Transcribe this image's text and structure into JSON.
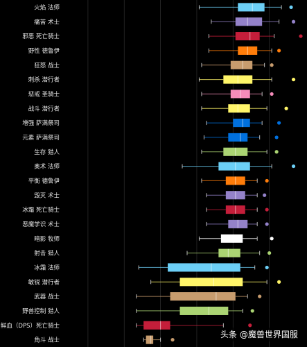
{
  "chart_data": {
    "type": "boxplot",
    "orientation": "horizontal",
    "title": "",
    "xlabel": "",
    "ylabel": "",
    "xlim": [
      0,
      100
    ],
    "grid": "vertical",
    "categories": [
      "火焰 法师",
      "痛苦 术士",
      "邪恶 死亡骑士",
      "野性 德鲁伊",
      "狂怒 战士",
      "刺杀 潜行者",
      "惩戒 圣骑士",
      "战斗 潜行者",
      "增强 萨满祭司",
      "元素 萨满祭司",
      "生存 猎人",
      "奥术 法师",
      "平衡 德鲁伊",
      "毁灭 术士",
      "冰霜 死亡骑士",
      "恶魔学识 术士",
      "暗影 牧师",
      "射击 猎人",
      "冰霜 法师",
      "敏锐 潜行者",
      "武器 战士",
      "野兽控制 猎人",
      "鲜血（DPS）死亡骑士",
      "角斗 战士"
    ],
    "series": [
      {
        "color": "#6ccff6",
        "whisker_low": 56,
        "q1": 72,
        "median": 78,
        "q3": 83,
        "whisker_high": 90,
        "outlier": 94
      },
      {
        "color": "#9482c9",
        "whisker_low": 61,
        "q1": 71,
        "median": 76,
        "q3": 82,
        "whisker_high": 89,
        "outlier": 95
      },
      {
        "color": "#c41e3a",
        "whisker_low": 60,
        "q1": 71,
        "median": 77,
        "q3": 81,
        "whisker_high": 87,
        "outlier": 98
      },
      {
        "color": "#ff7d0a",
        "whisker_low": 60,
        "q1": 72,
        "median": 76,
        "q3": 80,
        "whisker_high": 86,
        "outlier": 89
      },
      {
        "color": "#c79c6e",
        "whisker_low": 57,
        "q1": 69,
        "median": 74,
        "q3": 78,
        "whisker_high": 83,
        "outlier": 86
      },
      {
        "color": "#fff569",
        "whisker_low": 56,
        "q1": 66,
        "median": 72,
        "q3": 78,
        "whisker_high": 86,
        "outlier": 95
      },
      {
        "color": "#f58cba",
        "whisker_low": 57,
        "q1": 69,
        "median": 73,
        "q3": 77,
        "whisker_high": 82,
        "outlier": 86
      },
      {
        "color": "#fff569",
        "whisker_low": 57,
        "q1": 68,
        "median": 72,
        "q3": 77,
        "whisker_high": 84,
        "outlier": 92
      },
      {
        "color": "#0070de",
        "whisker_low": 59,
        "q1": 70,
        "median": 74,
        "q3": 77,
        "whisker_high": 82,
        "outlier": 89
      },
      {
        "color": "#0070de",
        "whisker_low": 58,
        "q1": 68,
        "median": 73,
        "q3": 76,
        "whisker_high": 81,
        "outlier": 88
      },
      {
        "color": "#abd473",
        "whisker_low": 57,
        "q1": 66,
        "median": 71,
        "q3": 76,
        "whisker_high": 84,
        "outlier": 88
      },
      {
        "color": "#6ccff6",
        "whisker_low": 49,
        "q1": 64,
        "median": 71,
        "q3": 77,
        "whisker_high": 86,
        "outlier": 95
      },
      {
        "color": "#ff7d0a",
        "whisker_low": 57,
        "q1": 67,
        "median": 71,
        "q3": 75,
        "whisker_high": 80,
        "outlier": 84
      },
      {
        "color": "#9482c9",
        "whisker_low": 59,
        "q1": 67,
        "median": 71,
        "q3": 75,
        "whisker_high": 80,
        "outlier": 83
      },
      {
        "color": "#c41e3a",
        "whisker_low": 59,
        "q1": 67,
        "median": 71,
        "q3": 75,
        "whisker_high": 80,
        "outlier": 84
      },
      {
        "color": "#9482c9",
        "whisker_low": 59,
        "q1": 68,
        "median": 72,
        "q3": 76,
        "whisker_high": 80,
        "outlier": 84
      },
      {
        "color": "#ffffff",
        "whisker_low": 56,
        "q1": 65,
        "median": 70,
        "q3": 74,
        "whisker_high": 80,
        "outlier": 86
      },
      {
        "color": "#abd473",
        "whisker_low": 51,
        "q1": 64,
        "median": 68,
        "q3": 73,
        "whisker_high": 81,
        "outlier": 85
      },
      {
        "color": "#6ccff6",
        "whisker_low": 31,
        "q1": 43,
        "median": 61,
        "q3": 73,
        "whisker_high": 79,
        "outlier": 84
      },
      {
        "color": "#fff569",
        "whisker_low": 36,
        "q1": 48,
        "median": 62,
        "q3": 74,
        "whisker_high": 84,
        "outlier": 89
      },
      {
        "color": "#c79c6e",
        "whisker_low": 30,
        "q1": 44,
        "median": 63,
        "q3": 71,
        "whisker_high": 76,
        "outlier": 81
      },
      {
        "color": "#abd473",
        "whisker_low": 30,
        "q1": 48,
        "median": 60,
        "q3": 68,
        "whisker_high": 74,
        "outlier": 78
      },
      {
        "color": "#c41e3a",
        "whisker_low": 30,
        "q1": 33,
        "median": 40,
        "q3": 44,
        "whisker_high": 66,
        "outlier": 77
      },
      {
        "color": "#c79c6e",
        "whisker_low": 33,
        "q1": 34,
        "median": 36,
        "q3": 37,
        "whisker_high": 40,
        "outlier": 45
      }
    ]
  },
  "watermark": {
    "text": "头条 @魔兽世界国服"
  }
}
